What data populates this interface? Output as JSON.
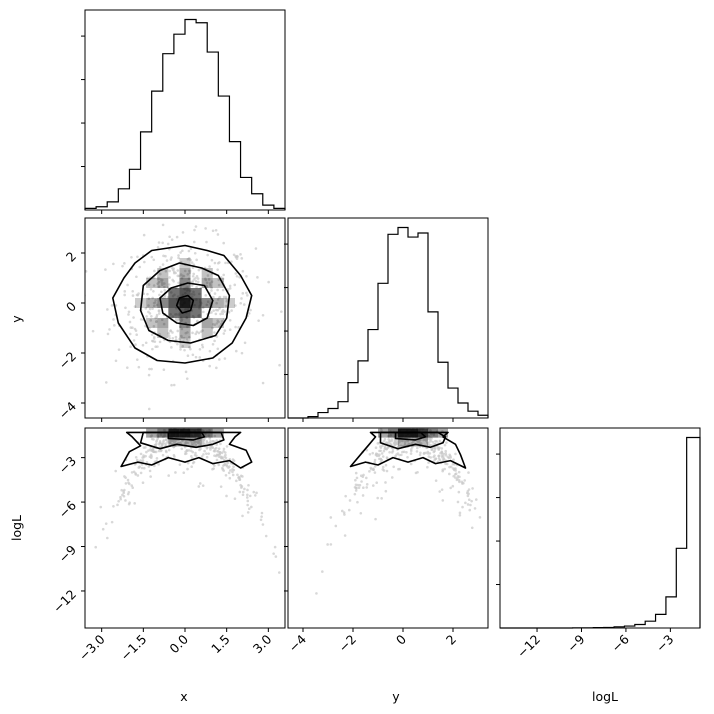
{
  "chart_data": {
    "type": "corner",
    "parameters": [
      "x",
      "y",
      "logL"
    ],
    "axis_labels": {
      "x": "x",
      "y": "y",
      "logL": "logL"
    },
    "ranges": {
      "x": [
        -3.6,
        3.6
      ],
      "y": [
        -4.6,
        3.4
      ],
      "logL": [
        -14.5,
        -1.0
      ]
    },
    "ticks": {
      "x": {
        "values": [
          -3.0,
          -1.5,
          0.0,
          1.5,
          3.0
        ],
        "labels": [
          "−3.0",
          "−1.5",
          "0.0",
          "1.5",
          "3.0"
        ]
      },
      "y": {
        "values": [
          -4,
          -2,
          0,
          2
        ],
        "labels": [
          "−4",
          "−2",
          "0",
          "2"
        ]
      },
      "logL": {
        "values": [
          -12,
          -9,
          -6,
          -3
        ],
        "labels": [
          "−12",
          "−9",
          "−6",
          "−3"
        ]
      }
    },
    "histograms": {
      "x": {
        "bins": [
          -3.6,
          -3.2,
          -2.8,
          -2.4,
          -2.0,
          -1.6,
          -1.2,
          -0.8,
          -0.4,
          0.0,
          0.4,
          0.8,
          1.2,
          1.6,
          2.0,
          2.4,
          2.8,
          3.2,
          3.6
        ],
        "counts": [
          1,
          2,
          5,
          13,
          25,
          48,
          73,
          96,
          108,
          117,
          115,
          97,
          70,
          42,
          20,
          10,
          3,
          1
        ]
      },
      "y": {
        "bins": [
          -4.6,
          -4.2,
          -3.8,
          -3.4,
          -3.0,
          -2.6,
          -2.2,
          -1.8,
          -1.4,
          -1.0,
          -0.6,
          -0.2,
          0.2,
          0.6,
          1.0,
          1.4,
          1.8,
          2.2,
          2.6,
          3.0,
          3.4
        ],
        "counts": [
          0,
          0,
          1,
          4,
          7,
          12,
          26,
          42,
          65,
          99,
          135,
          140,
          133,
          136,
          78,
          41,
          22,
          11,
          5,
          2
        ]
      },
      "logL": {
        "bins": [
          -14.5,
          -13.8,
          -13.1,
          -12.4,
          -11.7,
          -11.0,
          -10.3,
          -9.6,
          -8.9,
          -8.2,
          -7.5,
          -6.8,
          -6.1,
          -5.4,
          -4.7,
          -4.0,
          -3.3,
          -2.6,
          -1.9,
          -1.0
        ],
        "counts": [
          0,
          0,
          0,
          0,
          0,
          0,
          0,
          1,
          1,
          2,
          3,
          6,
          10,
          18,
          35,
          70,
          160,
          410,
          980
        ]
      }
    },
    "contours": {
      "x_y": [
        {
          "points": [
            [
              -1.2,
              2.1
            ],
            [
              -0.6,
              2.2
            ],
            [
              0.0,
              2.3
            ],
            [
              0.8,
              2.1
            ],
            [
              1.4,
              1.9
            ],
            [
              2.0,
              1.1
            ],
            [
              2.4,
              0.3
            ],
            [
              2.2,
              -0.6
            ],
            [
              1.7,
              -1.6
            ],
            [
              1.0,
              -2.2
            ],
            [
              0.0,
              -2.4
            ],
            [
              -1.0,
              -2.3
            ],
            [
              -1.8,
              -1.8
            ],
            [
              -2.4,
              -0.8
            ],
            [
              -2.6,
              0.2
            ],
            [
              -2.2,
              1.0
            ],
            [
              -1.8,
              1.6
            ]
          ]
        },
        {
          "points": [
            [
              -0.9,
              1.3
            ],
            [
              -0.2,
              1.6
            ],
            [
              0.6,
              1.4
            ],
            [
              1.2,
              1.1
            ],
            [
              1.6,
              0.3
            ],
            [
              1.5,
              -0.6
            ],
            [
              1.1,
              -1.3
            ],
            [
              0.2,
              -1.6
            ],
            [
              -0.6,
              -1.5
            ],
            [
              -1.3,
              -1.1
            ],
            [
              -1.6,
              -0.3
            ],
            [
              -1.5,
              0.7
            ]
          ]
        },
        {
          "points": [
            [
              -0.5,
              0.6
            ],
            [
              0.1,
              0.8
            ],
            [
              0.7,
              0.7
            ],
            [
              1.0,
              0.1
            ],
            [
              0.8,
              -0.6
            ],
            [
              0.3,
              -0.9
            ],
            [
              -0.3,
              -0.8
            ],
            [
              -0.8,
              -0.4
            ],
            [
              -0.9,
              0.2
            ]
          ]
        },
        {
          "points": [
            [
              -0.2,
              0.2
            ],
            [
              0.1,
              0.3
            ],
            [
              0.3,
              0.1
            ],
            [
              0.2,
              -0.3
            ],
            [
              -0.1,
              -0.4
            ],
            [
              -0.3,
              -0.1
            ]
          ]
        }
      ],
      "x_logL": [
        {
          "points": [
            [
              -2.1,
              -1.3
            ],
            [
              -1.9,
              -1.6
            ],
            [
              -1.6,
              -2.2
            ],
            [
              -2.0,
              -2.6
            ],
            [
              -2.3,
              -3.6
            ],
            [
              -1.7,
              -3.3
            ],
            [
              -1.2,
              -3.5
            ],
            [
              -0.6,
              -3.0
            ],
            [
              0.0,
              -3.3
            ],
            [
              0.5,
              -3.0
            ],
            [
              1.0,
              -3.4
            ],
            [
              1.6,
              -3.2
            ],
            [
              2.0,
              -3.7
            ],
            [
              2.4,
              -3.3
            ],
            [
              2.2,
              -2.5
            ],
            [
              1.6,
              -2.1
            ],
            [
              1.8,
              -1.6
            ],
            [
              2.0,
              -1.3
            ]
          ]
        },
        {
          "points": [
            [
              -1.5,
              -1.3
            ],
            [
              -1.6,
              -2.0
            ],
            [
              -0.9,
              -2.4
            ],
            [
              -0.3,
              -2.1
            ],
            [
              0.4,
              -2.3
            ],
            [
              1.0,
              -2.1
            ],
            [
              1.4,
              -1.8
            ],
            [
              1.3,
              -1.3
            ]
          ]
        },
        {
          "points": [
            [
              -0.6,
              -1.3
            ],
            [
              -0.6,
              -1.7
            ],
            [
              0.3,
              -1.8
            ],
            [
              0.7,
              -1.6
            ],
            [
              0.6,
              -1.3
            ]
          ]
        }
      ],
      "y_logL": [
        {
          "points": [
            [
              -1.3,
              -1.3
            ],
            [
              -1.1,
              -1.6
            ],
            [
              -1.4,
              -2.2
            ],
            [
              -1.6,
              -2.6
            ],
            [
              -2.1,
              -3.6
            ],
            [
              -1.5,
              -3.3
            ],
            [
              -1.0,
              -3.5
            ],
            [
              -0.4,
              -3.0
            ],
            [
              0.2,
              -3.3
            ],
            [
              0.8,
              -3.0
            ],
            [
              1.3,
              -3.4
            ],
            [
              1.9,
              -3.2
            ],
            [
              2.5,
              -3.7
            ],
            [
              2.3,
              -2.8
            ],
            [
              2.1,
              -2.1
            ],
            [
              1.6,
              -1.6
            ],
            [
              1.8,
              -1.3
            ]
          ]
        },
        {
          "points": [
            [
              -0.9,
              -1.3
            ],
            [
              -0.9,
              -2.0
            ],
            [
              -0.2,
              -2.4
            ],
            [
              0.5,
              -2.1
            ],
            [
              1.1,
              -2.3
            ],
            [
              1.6,
              -2.0
            ],
            [
              1.7,
              -1.6
            ],
            [
              1.4,
              -1.3
            ]
          ]
        },
        {
          "points": [
            [
              -0.3,
              -1.3
            ],
            [
              -0.3,
              -1.7
            ],
            [
              0.5,
              -1.8
            ],
            [
              0.9,
              -1.6
            ],
            [
              0.7,
              -1.3
            ]
          ]
        }
      ]
    },
    "density_cells": {
      "x_y": [
        {
          "x": 0.0,
          "y": 0.0,
          "v": 1.0
        },
        {
          "x": -0.4,
          "y": 0.0,
          "v": 0.7
        },
        {
          "x": 0.4,
          "y": 0.0,
          "v": 0.7
        },
        {
          "x": 0.0,
          "y": 0.4,
          "v": 0.7
        },
        {
          "x": 0.0,
          "y": -0.4,
          "v": 0.7
        },
        {
          "x": -0.4,
          "y": 0.4,
          "v": 0.55
        },
        {
          "x": 0.4,
          "y": 0.4,
          "v": 0.55
        },
        {
          "x": -0.4,
          "y": -0.4,
          "v": 0.55
        },
        {
          "x": 0.4,
          "y": -0.4,
          "v": 0.55
        },
        {
          "x": -0.8,
          "y": 0.0,
          "v": 0.45
        },
        {
          "x": 0.8,
          "y": 0.0,
          "v": 0.45
        },
        {
          "x": 0.0,
          "y": 0.8,
          "v": 0.45
        },
        {
          "x": 0.0,
          "y": -0.8,
          "v": 0.45
        },
        {
          "x": -0.8,
          "y": 0.8,
          "v": 0.3
        },
        {
          "x": 0.8,
          "y": 0.8,
          "v": 0.3
        },
        {
          "x": -0.8,
          "y": -0.8,
          "v": 0.3
        },
        {
          "x": 0.8,
          "y": -0.8,
          "v": 0.3
        },
        {
          "x": -1.2,
          "y": 0.0,
          "v": 0.25
        },
        {
          "x": 1.2,
          "y": 0.0,
          "v": 0.25
        },
        {
          "x": 0.0,
          "y": 1.2,
          "v": 0.25
        },
        {
          "x": 0.0,
          "y": -1.2,
          "v": 0.25
        },
        {
          "x": -1.2,
          "y": 0.8,
          "v": 0.15
        },
        {
          "x": 1.2,
          "y": 0.8,
          "v": 0.15
        },
        {
          "x": -1.2,
          "y": -0.8,
          "v": 0.15
        },
        {
          "x": 1.2,
          "y": -0.8,
          "v": 0.15
        },
        {
          "x": -0.8,
          "y": 1.2,
          "v": 0.15
        },
        {
          "x": 0.8,
          "y": 1.2,
          "v": 0.15
        },
        {
          "x": -0.8,
          "y": -1.2,
          "v": 0.15
        },
        {
          "x": 0.8,
          "y": -1.2,
          "v": 0.15
        },
        {
          "x": -1.6,
          "y": 0.0,
          "v": 0.1
        },
        {
          "x": 1.6,
          "y": 0.0,
          "v": 0.1
        },
        {
          "x": 0.0,
          "y": 1.6,
          "v": 0.1
        },
        {
          "x": 0.0,
          "y": -1.6,
          "v": 0.1
        }
      ],
      "x_logL": [
        {
          "x": -0.4,
          "y": -1.35,
          "v": 1.0
        },
        {
          "x": 0.0,
          "y": -1.35,
          "v": 1.0
        },
        {
          "x": 0.4,
          "y": -1.35,
          "v": 0.9
        },
        {
          "x": -0.8,
          "y": -1.35,
          "v": 0.55
        },
        {
          "x": 0.8,
          "y": -1.35,
          "v": 0.55
        },
        {
          "x": -1.2,
          "y": -1.35,
          "v": 0.3
        },
        {
          "x": 1.2,
          "y": -1.35,
          "v": 0.3
        },
        {
          "x": -0.4,
          "y": -1.95,
          "v": 0.2
        },
        {
          "x": 0.0,
          "y": -1.95,
          "v": 0.2
        },
        {
          "x": 0.4,
          "y": -1.95,
          "v": 0.2
        }
      ],
      "y_logL": [
        {
          "x": 0.0,
          "y": -1.35,
          "v": 1.0
        },
        {
          "x": 0.4,
          "y": -1.35,
          "v": 1.0
        },
        {
          "x": 0.8,
          "y": -1.35,
          "v": 0.85
        },
        {
          "x": -0.4,
          "y": -1.35,
          "v": 0.55
        },
        {
          "x": 1.2,
          "y": -1.35,
          "v": 0.5
        },
        {
          "x": -0.8,
          "y": -1.35,
          "v": 0.3
        },
        {
          "x": 1.6,
          "y": -1.35,
          "v": 0.3
        },
        {
          "x": 0.0,
          "y": -1.95,
          "v": 0.2
        },
        {
          "x": 0.4,
          "y": -1.95,
          "v": 0.2
        },
        {
          "x": 0.8,
          "y": -1.95,
          "v": 0.2
        }
      ]
    },
    "colors": {
      "line": "#000000",
      "density": "#000000",
      "points": "#c8c8c8",
      "background": "#ffffff"
    }
  }
}
